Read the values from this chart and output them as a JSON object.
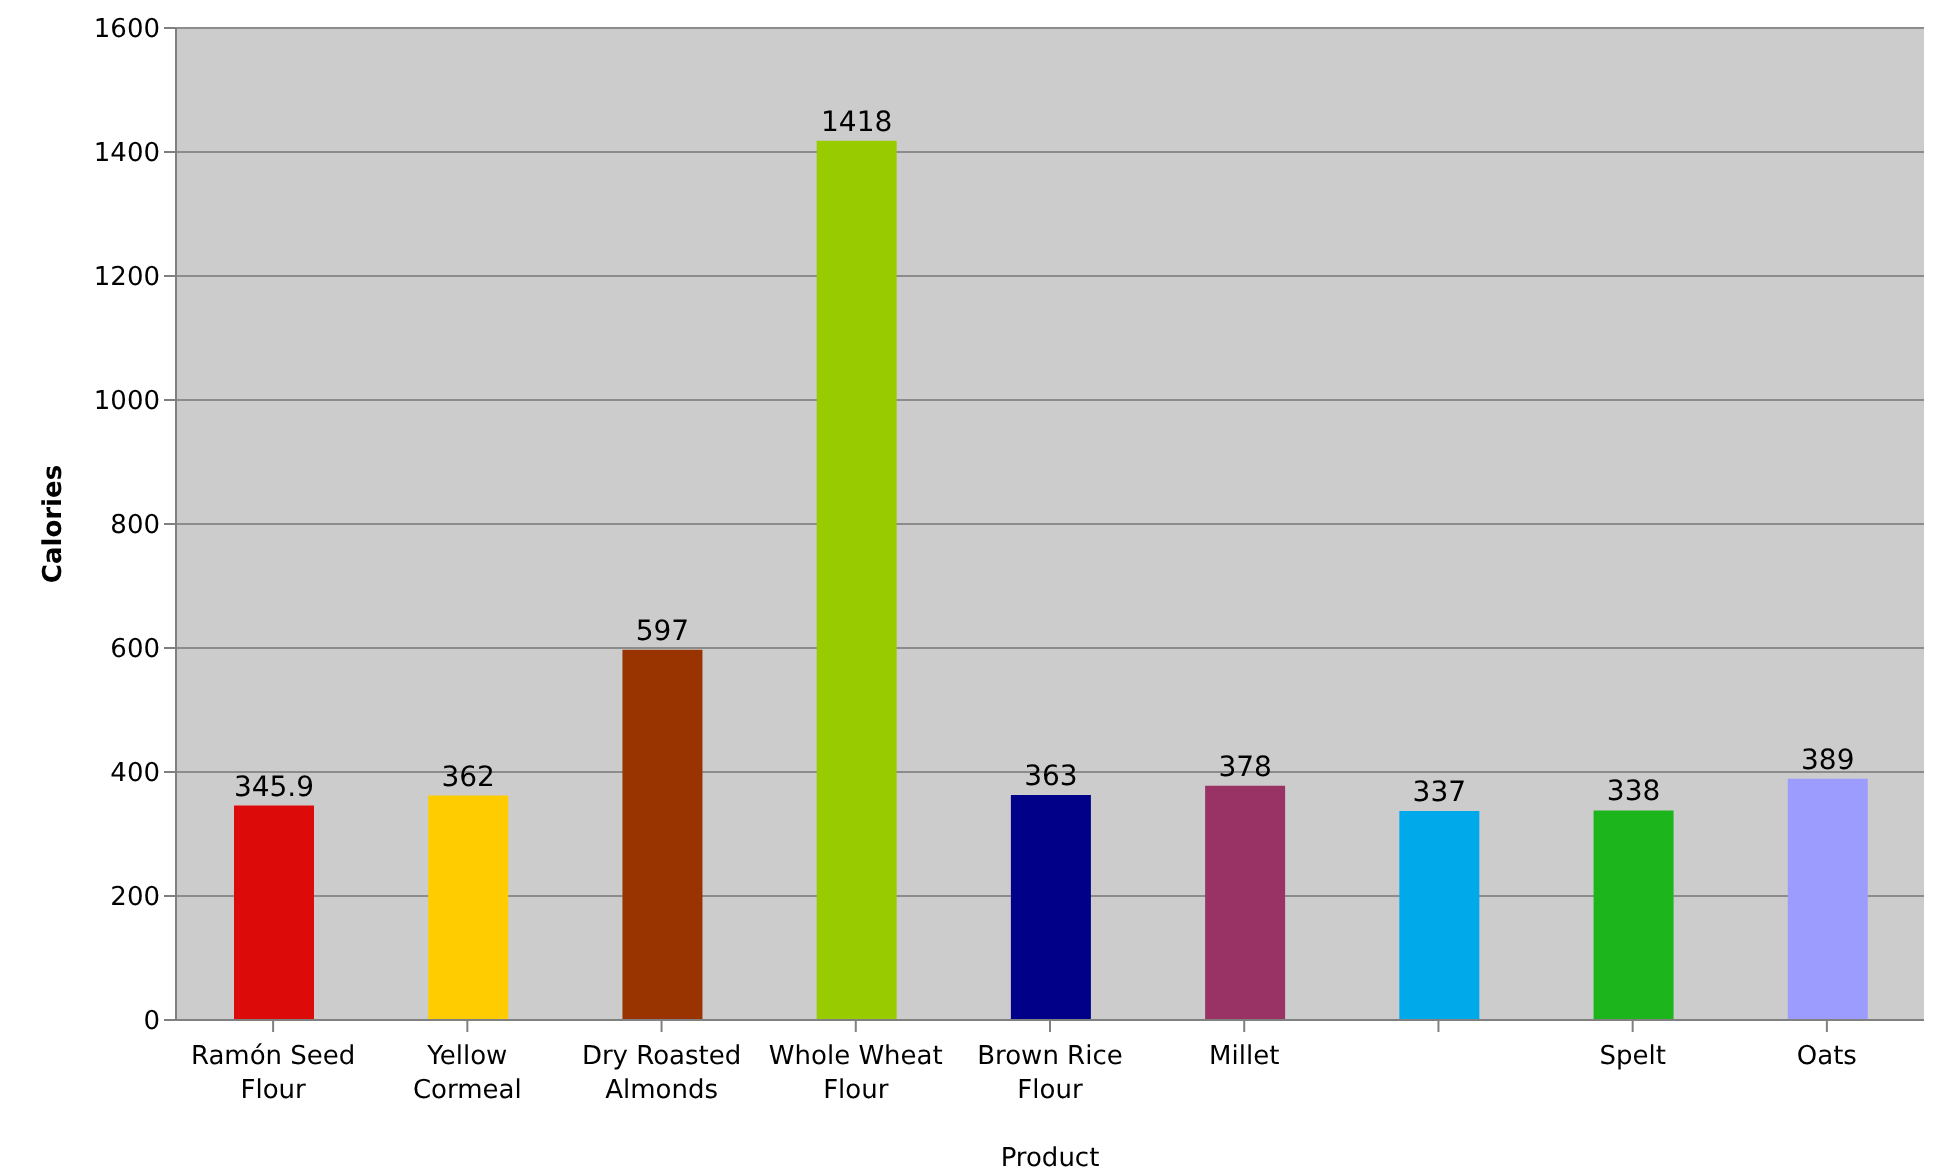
{
  "chart_data": {
    "type": "bar",
    "xlabel": "Product",
    "ylabel": "Calories",
    "categories": [
      "Ramón Seed Flour",
      "Yellow Cormeal",
      "Dry Roasted Almonds",
      "Whole Wheat Flour",
      "Brown Rice Flour",
      "Millet",
      null,
      "Spelt",
      "Oats"
    ],
    "values": [
      345.9,
      362,
      597,
      1418,
      363,
      378,
      337,
      338,
      389
    ],
    "colors": [
      "#dd0a0a",
      "#ffcc00",
      "#993300",
      "#99cc00",
      "#000088",
      "#993366",
      "#00aaea",
      "#1cb51c",
      "#9c9cff"
    ],
    "ylim": [
      0,
      1600
    ],
    "yticks": [
      0,
      200,
      400,
      600,
      800,
      1000,
      1200,
      1400,
      1600
    ],
    "grid": "y",
    "data_labels": true,
    "legend": false
  }
}
